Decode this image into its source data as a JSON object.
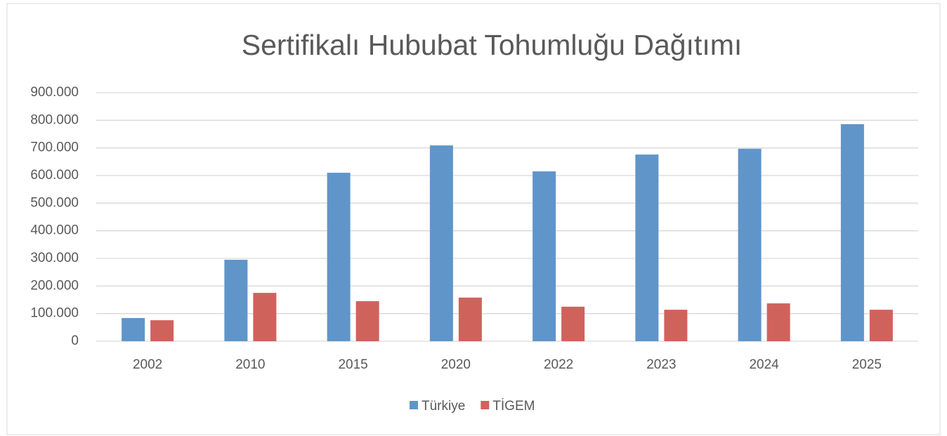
{
  "chart_data": {
    "type": "bar",
    "title": "Sertifikalı Hububat Tohumluğu Dağıtımı",
    "categories": [
      "2002",
      "2010",
      "2015",
      "2020",
      "2022",
      "2023",
      "2024",
      "2025"
    ],
    "series": [
      {
        "name": "Türkiye",
        "color": "#6095c9",
        "values": [
          84000,
          295000,
          610000,
          709000,
          615000,
          676000,
          697000,
          786000
        ]
      },
      {
        "name": "TİGEM",
        "color": "#d0625c",
        "values": [
          76000,
          175000,
          145000,
          158000,
          125000,
          114000,
          137000,
          114000
        ]
      }
    ],
    "ylim": [
      0,
      900000
    ],
    "yticks": [
      0,
      {
        "value": 100000,
        "label": "100.000"
      },
      {
        "value": 200000,
        "label": "200.000"
      },
      {
        "value": 300000,
        "label": "300.000"
      },
      {
        "value": 400000,
        "label": "400.000"
      },
      {
        "value": 500000,
        "label": "500.000"
      },
      {
        "value": 600000,
        "label": "600.000"
      },
      {
        "value": 700000,
        "label": "700.000"
      },
      {
        "value": 800000,
        "label": "800.000"
      },
      {
        "value": 900000,
        "label": "900.000"
      }
    ],
    "grid": true,
    "legend": "bottom"
  }
}
